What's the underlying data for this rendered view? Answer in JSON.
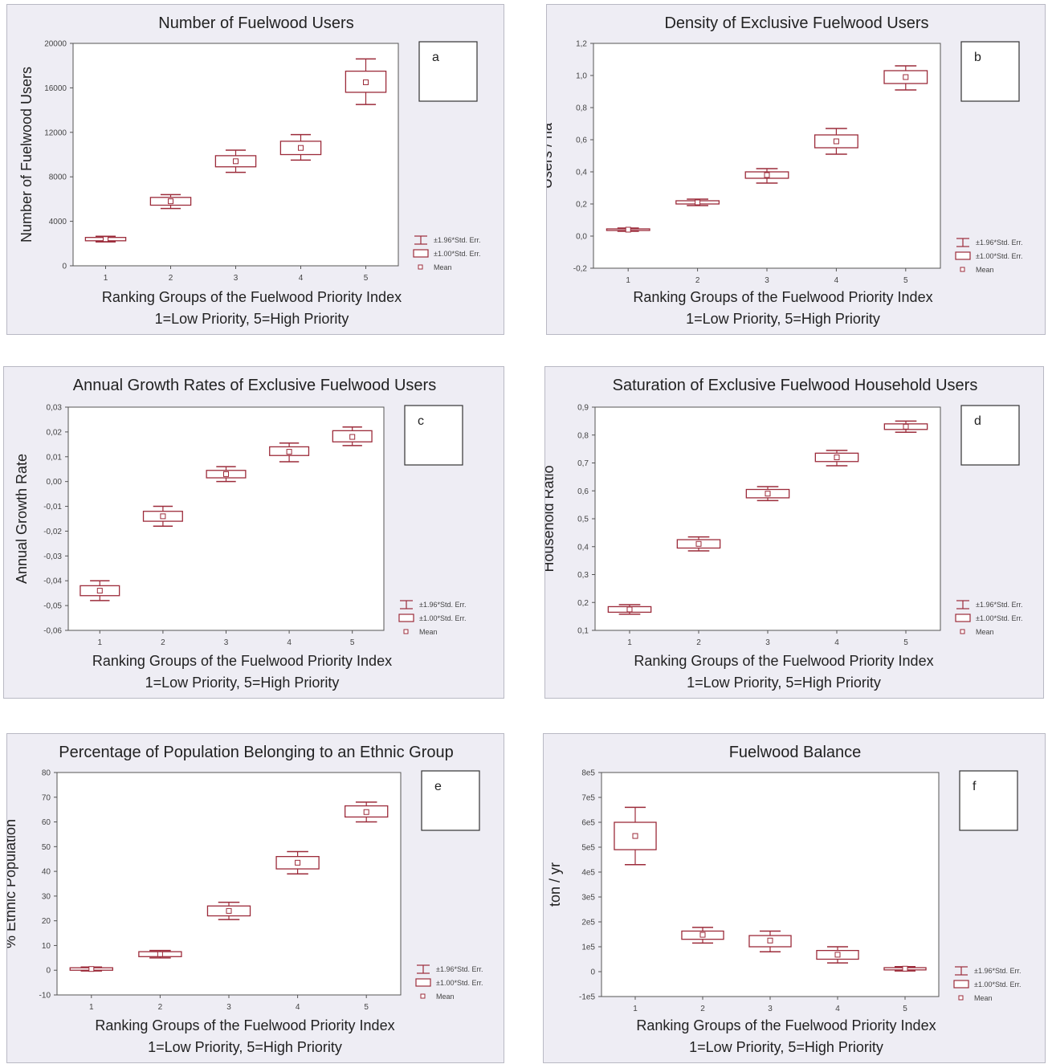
{
  "chart_data": [
    {
      "id": "a",
      "type": "box",
      "title": "Number of Fuelwood Users",
      "ylabel": "Number of Fuelwood Users",
      "xlabel": "Ranking Groups of the Fuelwood Priority Index",
      "xlabel2": "1=Low Priority, 5=High Priority",
      "tag": "a",
      "categories": [
        "1",
        "2",
        "3",
        "4",
        "5"
      ],
      "ylim": [
        0,
        20000
      ],
      "yticks": [
        0,
        4000,
        8000,
        12000,
        16000,
        20000
      ],
      "ytick_labels": [
        "0",
        "4000",
        "8000",
        "12000",
        "16000",
        "20000"
      ],
      "mean": [
        2400,
        5800,
        9400,
        10600,
        16500
      ],
      "se1_low": [
        2250,
        5450,
        8900,
        10000,
        15600
      ],
      "se1_high": [
        2550,
        6150,
        9900,
        11200,
        17500
      ],
      "se196_low": [
        2150,
        5150,
        8400,
        9500,
        14500
      ],
      "se196_high": [
        2650,
        6400,
        10400,
        11800,
        18600
      ],
      "legend": [
        "±1.96*Std. Err.",
        "±1.00*Std. Err.",
        "Mean"
      ]
    },
    {
      "id": "b",
      "type": "box",
      "title": "Density of Exclusive Fuelwood Users",
      "ylabel": "Users / ha",
      "xlabel": "Ranking Groups of the Fuelwood Priority Index",
      "xlabel2": "1=Low Priority, 5=High Priority",
      "tag": "b",
      "categories": [
        "1",
        "2",
        "3",
        "4",
        "5"
      ],
      "ylim": [
        -0.2,
        1.2
      ],
      "yticks": [
        -0.2,
        0,
        0.2,
        0.4,
        0.6,
        0.8,
        1.0,
        1.2
      ],
      "ytick_labels": [
        "-0,2",
        "0,0",
        "0,2",
        "0,4",
        "0,6",
        "0,8",
        "1,0",
        "1,2"
      ],
      "mean": [
        0.04,
        0.21,
        0.38,
        0.59,
        0.99
      ],
      "se1_low": [
        0.035,
        0.2,
        0.36,
        0.55,
        0.95
      ],
      "se1_high": [
        0.045,
        0.22,
        0.4,
        0.63,
        1.03
      ],
      "se196_low": [
        0.03,
        0.19,
        0.33,
        0.51,
        0.91
      ],
      "se196_high": [
        0.05,
        0.23,
        0.42,
        0.67,
        1.06
      ],
      "legend": [
        "±1.96*Std. Err.",
        "±1.00*Std. Err.",
        "Mean"
      ]
    },
    {
      "id": "c",
      "type": "box",
      "title": "Annual Growth Rates of Exclusive Fuelwood Users",
      "ylabel": "Annual Growth Rate",
      "xlabel": "Ranking Groups of the Fuelwood Priority Index",
      "xlabel2": "1=Low Priority, 5=High Priority",
      "tag": "c",
      "categories": [
        "1",
        "2",
        "3",
        "4",
        "5"
      ],
      "ylim": [
        -0.06,
        0.03
      ],
      "yticks": [
        -0.06,
        -0.05,
        -0.04,
        -0.03,
        -0.02,
        -0.01,
        0,
        0.01,
        0.02,
        0.03
      ],
      "ytick_labels": [
        "-0,06",
        "-0,05",
        "-0,04",
        "-0,03",
        "-0,02",
        "-0,01",
        "0,00",
        "0,01",
        "0,02",
        "0,03"
      ],
      "mean": [
        -0.044,
        -0.014,
        0.003,
        0.012,
        0.018
      ],
      "se1_low": [
        -0.046,
        -0.016,
        0.0015,
        0.0105,
        0.016
      ],
      "se1_high": [
        -0.042,
        -0.012,
        0.0045,
        0.014,
        0.0205
      ],
      "se196_low": [
        -0.048,
        -0.018,
        0.0,
        0.008,
        0.0145
      ],
      "se196_high": [
        -0.04,
        -0.01,
        0.006,
        0.0155,
        0.022
      ],
      "legend": [
        "±1.96*Std. Err.",
        "±1.00*Std. Err.",
        "Mean"
      ]
    },
    {
      "id": "d",
      "type": "box",
      "title": "Saturation of Exclusive Fuelwood Household Users",
      "ylabel": "Household Ratio",
      "xlabel": "Ranking Groups of the Fuelwood Priority Index",
      "xlabel2": "1=Low Priority, 5=High Priority",
      "tag": "d",
      "categories": [
        "1",
        "2",
        "3",
        "4",
        "5"
      ],
      "ylim": [
        0.1,
        0.9
      ],
      "yticks": [
        0.1,
        0.2,
        0.3,
        0.4,
        0.5,
        0.6,
        0.7,
        0.8,
        0.9
      ],
      "ytick_labels": [
        "0,1",
        "0,2",
        "0,3",
        "0,4",
        "0,5",
        "0,6",
        "0,7",
        "0,8",
        "0,9"
      ],
      "mean": [
        0.175,
        0.41,
        0.59,
        0.72,
        0.83
      ],
      "se1_low": [
        0.165,
        0.395,
        0.575,
        0.705,
        0.82
      ],
      "se1_high": [
        0.185,
        0.425,
        0.605,
        0.735,
        0.84
      ],
      "se196_low": [
        0.158,
        0.385,
        0.565,
        0.69,
        0.81
      ],
      "se196_high": [
        0.192,
        0.435,
        0.615,
        0.745,
        0.85
      ],
      "legend": [
        "±1.96*Std. Err.",
        "±1.00*Std. Err.",
        "Mean"
      ]
    },
    {
      "id": "e",
      "type": "box",
      "title": "Percentage of Population Belonging to an Ethnic Group",
      "ylabel": "% Ethnic Population",
      "xlabel": "Ranking Groups of the Fuelwood Priority Index",
      "xlabel2": "1=Low Priority, 5=High Priority",
      "tag": "e",
      "categories": [
        "1",
        "2",
        "3",
        "4",
        "5"
      ],
      "ylim": [
        -10,
        80
      ],
      "yticks": [
        -10,
        0,
        10,
        20,
        30,
        40,
        50,
        60,
        70,
        80
      ],
      "ytick_labels": [
        "-10",
        "0",
        "10",
        "20",
        "30",
        "40",
        "50",
        "60",
        "70",
        "80"
      ],
      "mean": [
        0.5,
        6.5,
        24,
        43.5,
        64
      ],
      "se1_low": [
        0,
        5.5,
        22,
        41,
        62
      ],
      "se1_high": [
        1,
        7.5,
        26,
        46,
        66.5
      ],
      "se196_low": [
        -0.3,
        5,
        20.5,
        39,
        60
      ],
      "se196_high": [
        1.3,
        8,
        27.5,
        48,
        68
      ],
      "legend": [
        "±1.96*Std. Err.",
        "±1.00*Std. Err.",
        "Mean"
      ]
    },
    {
      "id": "f",
      "type": "box",
      "title": "Fuelwood Balance",
      "ylabel": "ton / yr",
      "xlabel": "Ranking Groups of the Fuelwood Priority Index",
      "xlabel2": "1=Low Priority, 5=High Priority",
      "tag": "f",
      "categories": [
        "1",
        "2",
        "3",
        "4",
        "5"
      ],
      "ylim": [
        -100000,
        800000
      ],
      "yticks": [
        -100000,
        0,
        100000,
        200000,
        300000,
        400000,
        500000,
        600000,
        700000,
        800000
      ],
      "ytick_labels": [
        "-1e5",
        "0",
        "1e5",
        "2e5",
        "3e5",
        "4e5",
        "5e5",
        "6e5",
        "7e5",
        "8e5"
      ],
      "mean": [
        545000,
        148000,
        125000,
        68000,
        12000
      ],
      "se1_low": [
        490000,
        130000,
        100000,
        50000,
        7000
      ],
      "se1_high": [
        600000,
        163000,
        145000,
        85000,
        16000
      ],
      "se196_low": [
        430000,
        115000,
        80000,
        35000,
        3000
      ],
      "se196_high": [
        660000,
        178000,
        163000,
        100000,
        20000
      ],
      "legend": [
        "±1.96*Std. Err.",
        "±1.00*Std. Err.",
        "Mean"
      ]
    }
  ]
}
